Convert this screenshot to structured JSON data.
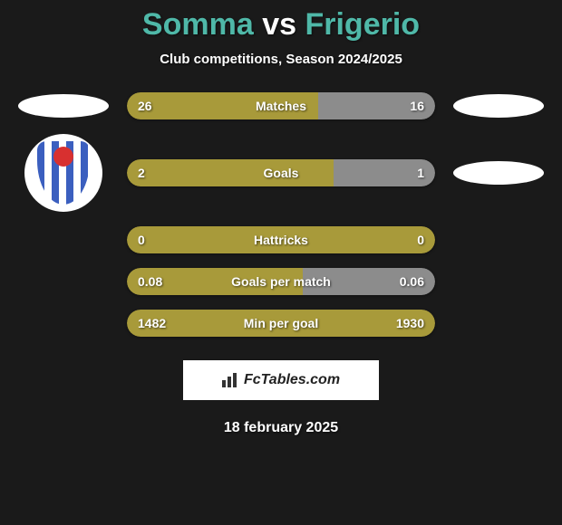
{
  "title": {
    "player1": "Somma",
    "vs": "vs",
    "player2": "Frigerio",
    "color1": "#4fb8a8",
    "color_vs": "#ffffff",
    "color2": "#4fb8a8"
  },
  "subtitle": "Club competitions, Season 2024/2025",
  "bar_colors": {
    "left": "#a89a3a",
    "right": "#8c8c8c"
  },
  "stats": [
    {
      "label": "Matches",
      "left_val": "26",
      "right_val": "16",
      "left_pct": 62,
      "right_pct": 38
    },
    {
      "label": "Goals",
      "left_val": "2",
      "right_val": "1",
      "left_pct": 67,
      "right_pct": 33
    },
    {
      "label": "Hattricks",
      "left_val": "0",
      "right_val": "0",
      "left_pct": 100,
      "right_pct": 0
    },
    {
      "label": "Goals per match",
      "left_val": "0.08",
      "right_val": "0.06",
      "left_pct": 57,
      "right_pct": 43
    },
    {
      "label": "Min per goal",
      "left_val": "1482",
      "right_val": "1930",
      "left_pct": 100,
      "right_pct": 0
    }
  ],
  "branding": "FcTables.com",
  "date": "18 february 2025"
}
